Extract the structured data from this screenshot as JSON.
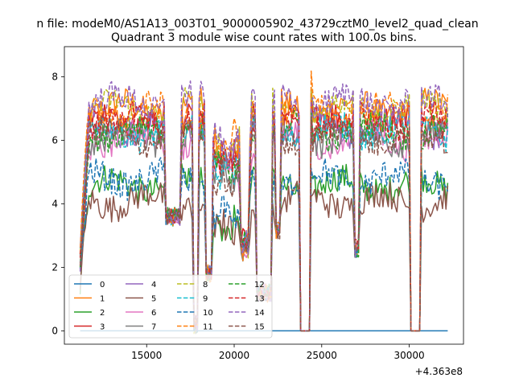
{
  "figure": {
    "suptitle": "n file: modeM0/AS1A13_003T01_9000005902_43729cztM0_level2_quad_clean",
    "title": "Quadrant 3 module wise count rates with 100.0s bins.",
    "offset_label": "+4.363e8"
  },
  "chart_data": {
    "type": "line",
    "title": "Quadrant 3 module wise count rates with 100.0s bins.",
    "xlabel": "",
    "ylabel": "",
    "x_offset": 436300000,
    "xlim": [
      10300,
      33100
    ],
    "ylim": [
      -0.42,
      8.95
    ],
    "xticks": [
      15000,
      20000,
      25000,
      30000
    ],
    "xtick_labels": [
      "15000",
      "20000",
      "25000",
      "30000"
    ],
    "yticks": [
      0,
      2,
      4,
      6,
      8
    ],
    "ytick_labels": [
      "0",
      "2",
      "4",
      "6",
      "8"
    ],
    "grid": false,
    "legend": {
      "placement": "lower-left",
      "columns": 4
    },
    "x_start": 11200,
    "x_end": 32200,
    "bin_seconds": 100,
    "gaps": [
      [
        23800,
        24300
      ],
      [
        30050,
        30600
      ]
    ],
    "gap_value_series_0_to_15": 0,
    "series": [
      {
        "name": "0",
        "color": "#1f77b4",
        "dash": "solid",
        "level_segments": [
          {
            "x": [
              11200,
              32200
            ],
            "y": 0
          }
        ]
      },
      {
        "name": "1",
        "color": "#ff7f0e",
        "dash": "solid",
        "typical_level": 7.0
      },
      {
        "name": "2",
        "color": "#2ca02c",
        "dash": "solid",
        "typical_level": 4.6
      },
      {
        "name": "3",
        "color": "#d62728",
        "dash": "solid",
        "typical_level": 6.6
      },
      {
        "name": "4",
        "color": "#9467bd",
        "dash": "solid",
        "typical_level": 6.4
      },
      {
        "name": "5",
        "color": "#8c564b",
        "dash": "solid",
        "typical_level": 4.1
      },
      {
        "name": "6",
        "color": "#e377c2",
        "dash": "solid",
        "typical_level": 6.0
      },
      {
        "name": "7",
        "color": "#7f7f7f",
        "dash": "solid",
        "typical_level": 6.1
      },
      {
        "name": "8",
        "color": "#bcbd22",
        "dash": "dashed",
        "typical_level": 7.0
      },
      {
        "name": "9",
        "color": "#17becf",
        "dash": "dashed",
        "typical_level": 6.3
      },
      {
        "name": "10",
        "color": "#1f77b4",
        "dash": "dashed",
        "typical_level": 4.8
      },
      {
        "name": "11",
        "color": "#ff7f0e",
        "dash": "dashed",
        "typical_level": 6.9
      },
      {
        "name": "12",
        "color": "#2ca02c",
        "dash": "dashed",
        "typical_level": 6.3
      },
      {
        "name": "13",
        "color": "#d62728",
        "dash": "dashed",
        "typical_level": 6.6
      },
      {
        "name": "14",
        "color": "#9467bd",
        "dash": "dashed",
        "typical_level": 7.2
      },
      {
        "name": "15",
        "color": "#8c564b",
        "dash": "dashed",
        "typical_level": 6.1
      }
    ],
    "dips": [
      {
        "x": [
          16100,
          16900
        ],
        "level": 3.6
      },
      {
        "x": [
          17700,
          17900
        ],
        "level": 0.2
      },
      {
        "x": [
          18400,
          18700
        ],
        "level": 1.8
      },
      {
        "x": [
          20400,
          20800
        ],
        "level": 3.8
      },
      {
        "x": [
          21300,
          22100
        ],
        "level": 1.2
      },
      {
        "x": [
          22400,
          22600
        ],
        "level": 3.2
      },
      {
        "x": [
          26900,
          27100
        ],
        "level": 2.6
      }
    ]
  }
}
